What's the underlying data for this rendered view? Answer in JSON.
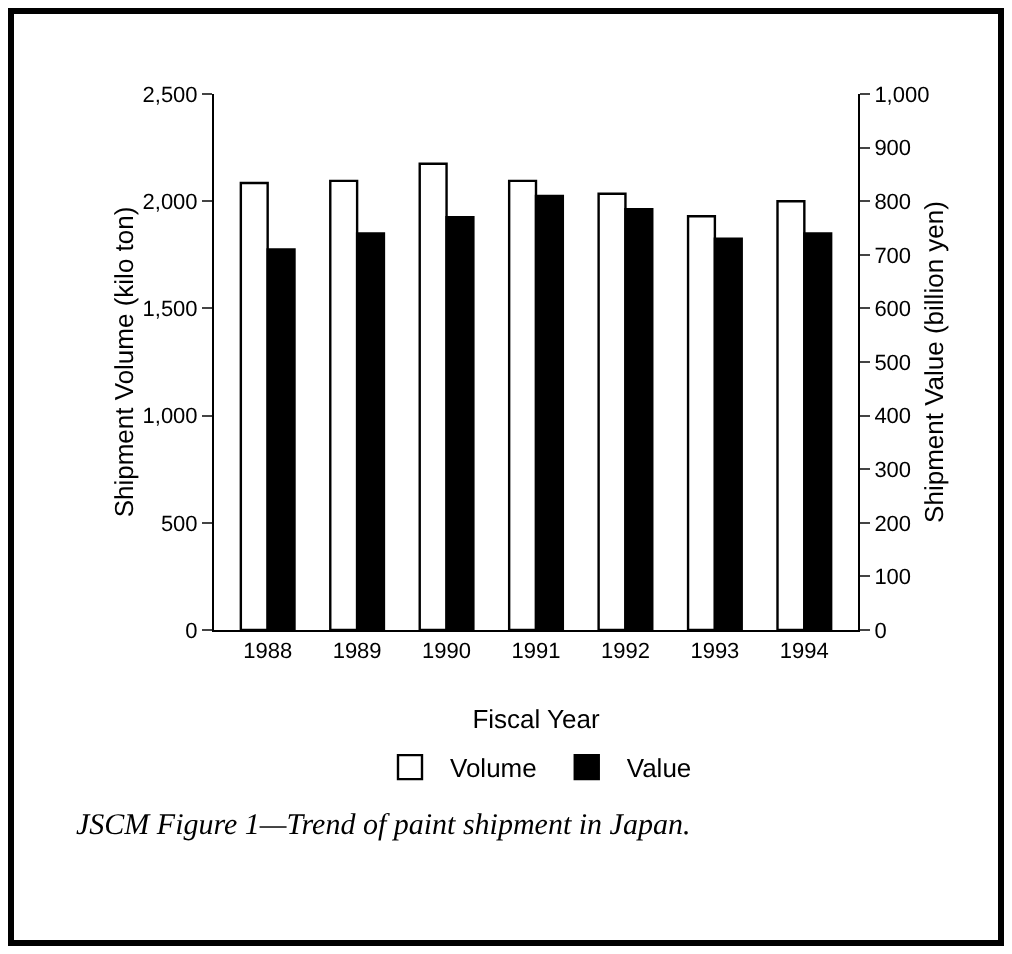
{
  "chart_data": {
    "type": "bar",
    "xlabel": "Fiscal Year",
    "ylabel": "Shipment Volume (kilo ton)",
    "y2label": "Shipment Value (billion yen)",
    "categories": [
      "1988",
      "1989",
      "1990",
      "1991",
      "1992",
      "1993",
      "1994"
    ],
    "series": [
      {
        "name": "Volume",
        "color": "#ffffff",
        "values": [
          2085,
          2095,
          2175,
          2095,
          2035,
          1930,
          2000
        ]
      },
      {
        "name": "Value",
        "color": "#000000",
        "axis": "y2",
        "values": [
          710,
          740,
          770,
          810,
          785,
          730,
          740
        ]
      }
    ],
    "ylim": [
      0,
      2500
    ],
    "yticks": [
      0,
      500,
      {
        "value": 1000,
        "label": "1,000"
      },
      {
        "value": 1500,
        "label": "1,500"
      },
      {
        "value": 2000,
        "label": "2,000"
      },
      {
        "value": 2500,
        "label": "2,500"
      }
    ],
    "y2lim": [
      0,
      1000
    ],
    "y2ticks": [
      0,
      100,
      200,
      300,
      400,
      500,
      600,
      700,
      800,
      900,
      {
        "value": 1000,
        "label": "1,000"
      }
    ],
    "grid": false,
    "legend": "bottom",
    "annotations": [
      "JSCM Figure 1—Trend of paint shipment in Japan."
    ]
  }
}
